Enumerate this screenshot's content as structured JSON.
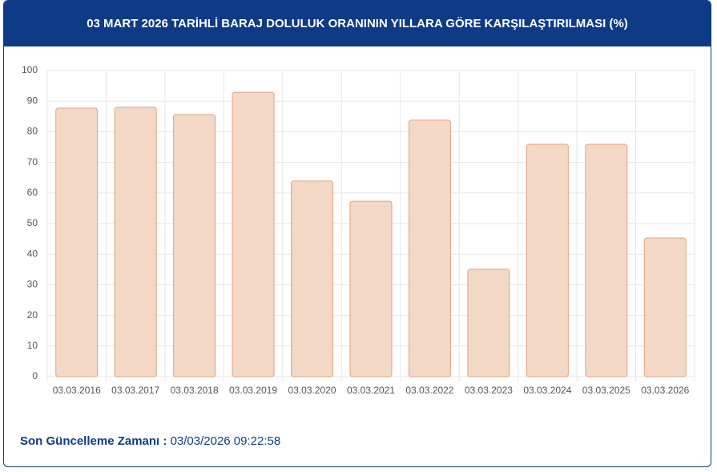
{
  "chart_data": {
    "type": "bar",
    "title": "03 MART 2026 TARİHLİ BARAJ DOLULUK ORANININ YILLARA GÖRE KARŞILAŞTIRILMASI (%)",
    "categories": [
      "03.03.2016",
      "03.03.2017",
      "03.03.2018",
      "03.03.2019",
      "03.03.2020",
      "03.03.2021",
      "03.03.2022",
      "03.03.2023",
      "03.03.2024",
      "03.03.2025",
      "03.03.2026"
    ],
    "values": [
      87.7,
      88,
      85.6,
      92.9,
      63.9,
      57.3,
      83.8,
      35.1,
      75.9,
      75.9,
      45.3
    ],
    "color": "#f3d8c6",
    "ylim": [
      0,
      100
    ],
    "yticks": [
      0,
      10,
      20,
      30,
      40,
      50,
      60,
      70,
      80,
      90,
      100
    ],
    "grid": true
  },
  "footer": {
    "label": "Son Güncelleme Zamanı :",
    "value": "03/03/2026 09:22:58"
  }
}
